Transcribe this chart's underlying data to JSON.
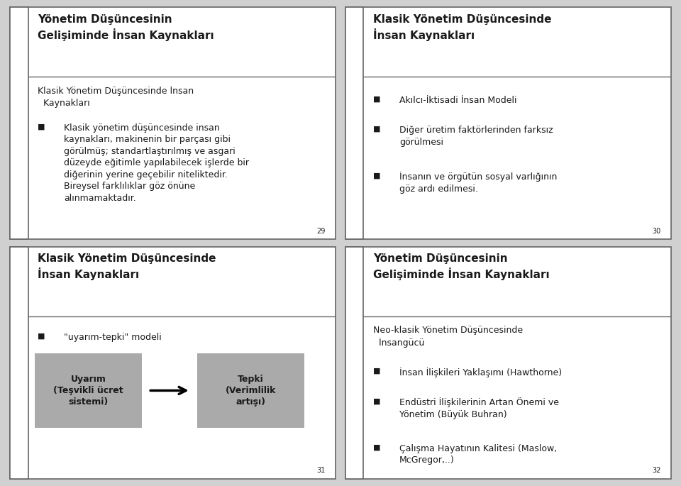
{
  "bg_color": "#d0d0d0",
  "border_color": "#666666",
  "slide_bg": "#ffffff",
  "text_color": "#1a1a1a",
  "gray_box": "#aaaaaa",
  "slide1": {
    "title": "Yönetim Düşüncesinin\nGelişiminde İnsan Kaynakları",
    "subtitle": "Klasik Yönetim Düşüncesinde İnsan\n  Kaynakları",
    "bullet": "Klasik yönetim düşüncesinde insan\nkaynakları, makinenin bir parçası gibi\ngörülmüş; standartlaştırılmış ve asgari\ndüzeyde eğitimle yapılabilecek işlerde bir\ndiğerinin yerine geçebilir niteliktedir.\nBireysel farklılıklar göz önüne\nalınmamaktadır.",
    "page": "29"
  },
  "slide2": {
    "title": "Klasik Yönetim Düşüncesinde\nİnsan Kaynakları",
    "bullets": [
      "Akılcı-İktisadi İnsan Modeli",
      "Diğer üretim faktörlerinden farksız\ngörülmesi",
      "İnsanın ve örgütün sosyal varlığının\ngöz ardı edilmesi."
    ],
    "page": "30"
  },
  "slide3": {
    "title": "Klasik Yönetim Düşüncesinde\nİnsan Kaynakları",
    "bullet_label": "\"uyarım-tepki\" modeli",
    "box1_text": "Uyarım\n(Teşvikli ücret\nsistemi)",
    "box2_text": "Tepki\n(Verimlilik\nartışı)",
    "page": "31"
  },
  "slide4": {
    "title": "Yönetim Düşüncesinin\nGelişiminde İnsan Kaynakları",
    "subtitle": "Neo-klasik Yönetim Düşüncesinde\n  İnsangücü",
    "bullets": [
      "İnsan İlişkileri Yaklaşımı (Hawthorne)",
      "Endüstri İlişkilerinin Artan Önemi ve\nYönetim (Büyük Buhran)",
      "Çalışma Hayatının Kalitesi (Maslow,\nMcGregor,..)"
    ],
    "page": "32"
  },
  "title_fontsize": 11,
  "body_fontsize": 9,
  "small_fontsize": 7
}
